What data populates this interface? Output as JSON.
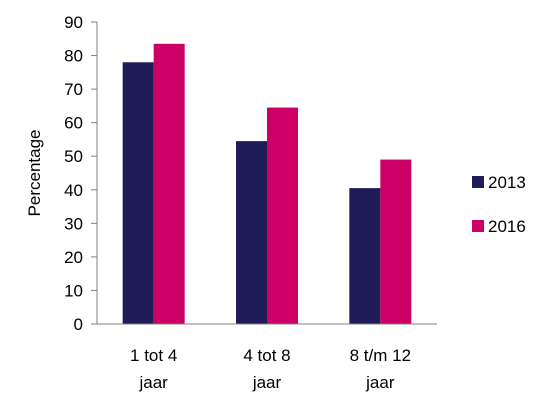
{
  "chart_data": {
    "type": "bar",
    "ylabel": "Percentage",
    "xlabel": "",
    "ylim": [
      0,
      90
    ],
    "yticks": [
      0,
      10,
      20,
      30,
      40,
      50,
      60,
      70,
      80,
      90
    ],
    "grid": false,
    "legend_position": "right",
    "categories": [
      [
        "1 tot 4",
        "jaar"
      ],
      [
        "4 tot 8",
        "jaar"
      ],
      [
        "8 t/m 12",
        "jaar"
      ]
    ],
    "series": [
      {
        "name": "2013",
        "color": "#201c5a",
        "values": [
          78,
          54.5,
          40.5
        ]
      },
      {
        "name": "2016",
        "color": "#cc0066",
        "values": [
          83.5,
          64.5,
          49
        ]
      }
    ]
  }
}
